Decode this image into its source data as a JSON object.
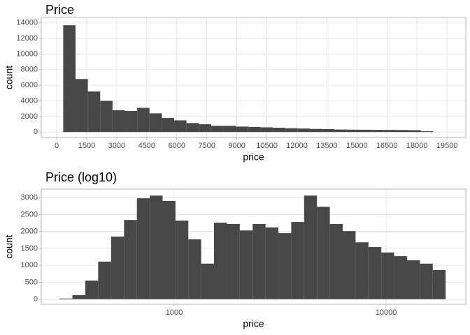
{
  "chart_data": [
    {
      "type": "histogram",
      "title": "Price",
      "x_label": "price",
      "y_label": "count",
      "color": "#474747",
      "grid": true,
      "log_x": false,
      "bins": [
        326,
        942,
        1558,
        2174,
        2790,
        3406,
        4022,
        4638,
        5254,
        5870,
        6486,
        7102,
        7718,
        8334,
        8950,
        9566,
        10182,
        10798,
        11414,
        12030,
        12646,
        13262,
        13878,
        14494,
        15110,
        15726,
        16342,
        16958,
        17574,
        18190,
        18806
      ],
      "counts": [
        13700,
        6800,
        5200,
        4000,
        2800,
        2700,
        3100,
        2400,
        1800,
        1500,
        1150,
        1000,
        800,
        800,
        700,
        650,
        600,
        550,
        480,
        450,
        400,
        380,
        320,
        300,
        290,
        280,
        270,
        260,
        240,
        100
      ],
      "xlim": [
        -770,
        20440
      ],
      "ylim": [
        -700,
        14700
      ],
      "xticks": [
        0,
        1500,
        3000,
        4500,
        6000,
        7500,
        9000,
        10500,
        12000,
        13500,
        15000,
        16500,
        18000,
        19500
      ],
      "yticks": [
        0,
        2000,
        4000,
        6000,
        8000,
        10000,
        12000,
        14000
      ]
    },
    {
      "type": "histogram",
      "title": "Price (log10)",
      "x_label": "price",
      "y_label": "count",
      "color": "#474747",
      "grid": true,
      "log_x": true,
      "bins": [
        288,
        331,
        381,
        438,
        504,
        580,
        667,
        767,
        882,
        1014,
        1166,
        1341,
        1542,
        1774,
        2040,
        2346,
        2698,
        3103,
        3568,
        4103,
        4719,
        5427,
        6241,
        7177,
        8253,
        9491,
        10915,
        12552,
        14435,
        16600,
        19090
      ],
      "counts": [
        20,
        120,
        550,
        1110,
        1850,
        2340,
        2980,
        3060,
        2900,
        2320,
        1770,
        1050,
        2260,
        2220,
        2030,
        2220,
        2120,
        1950,
        2280,
        3060,
        2730,
        2220,
        2010,
        1680,
        1540,
        1380,
        1270,
        1150,
        1050,
        860
      ],
      "xlim": [
        236,
        23770
      ],
      "ylim": [
        -150,
        3250
      ],
      "xticks": [
        1000,
        10000
      ],
      "yticks": [
        0,
        500,
        1000,
        1500,
        2000,
        2500,
        3000
      ]
    }
  ]
}
